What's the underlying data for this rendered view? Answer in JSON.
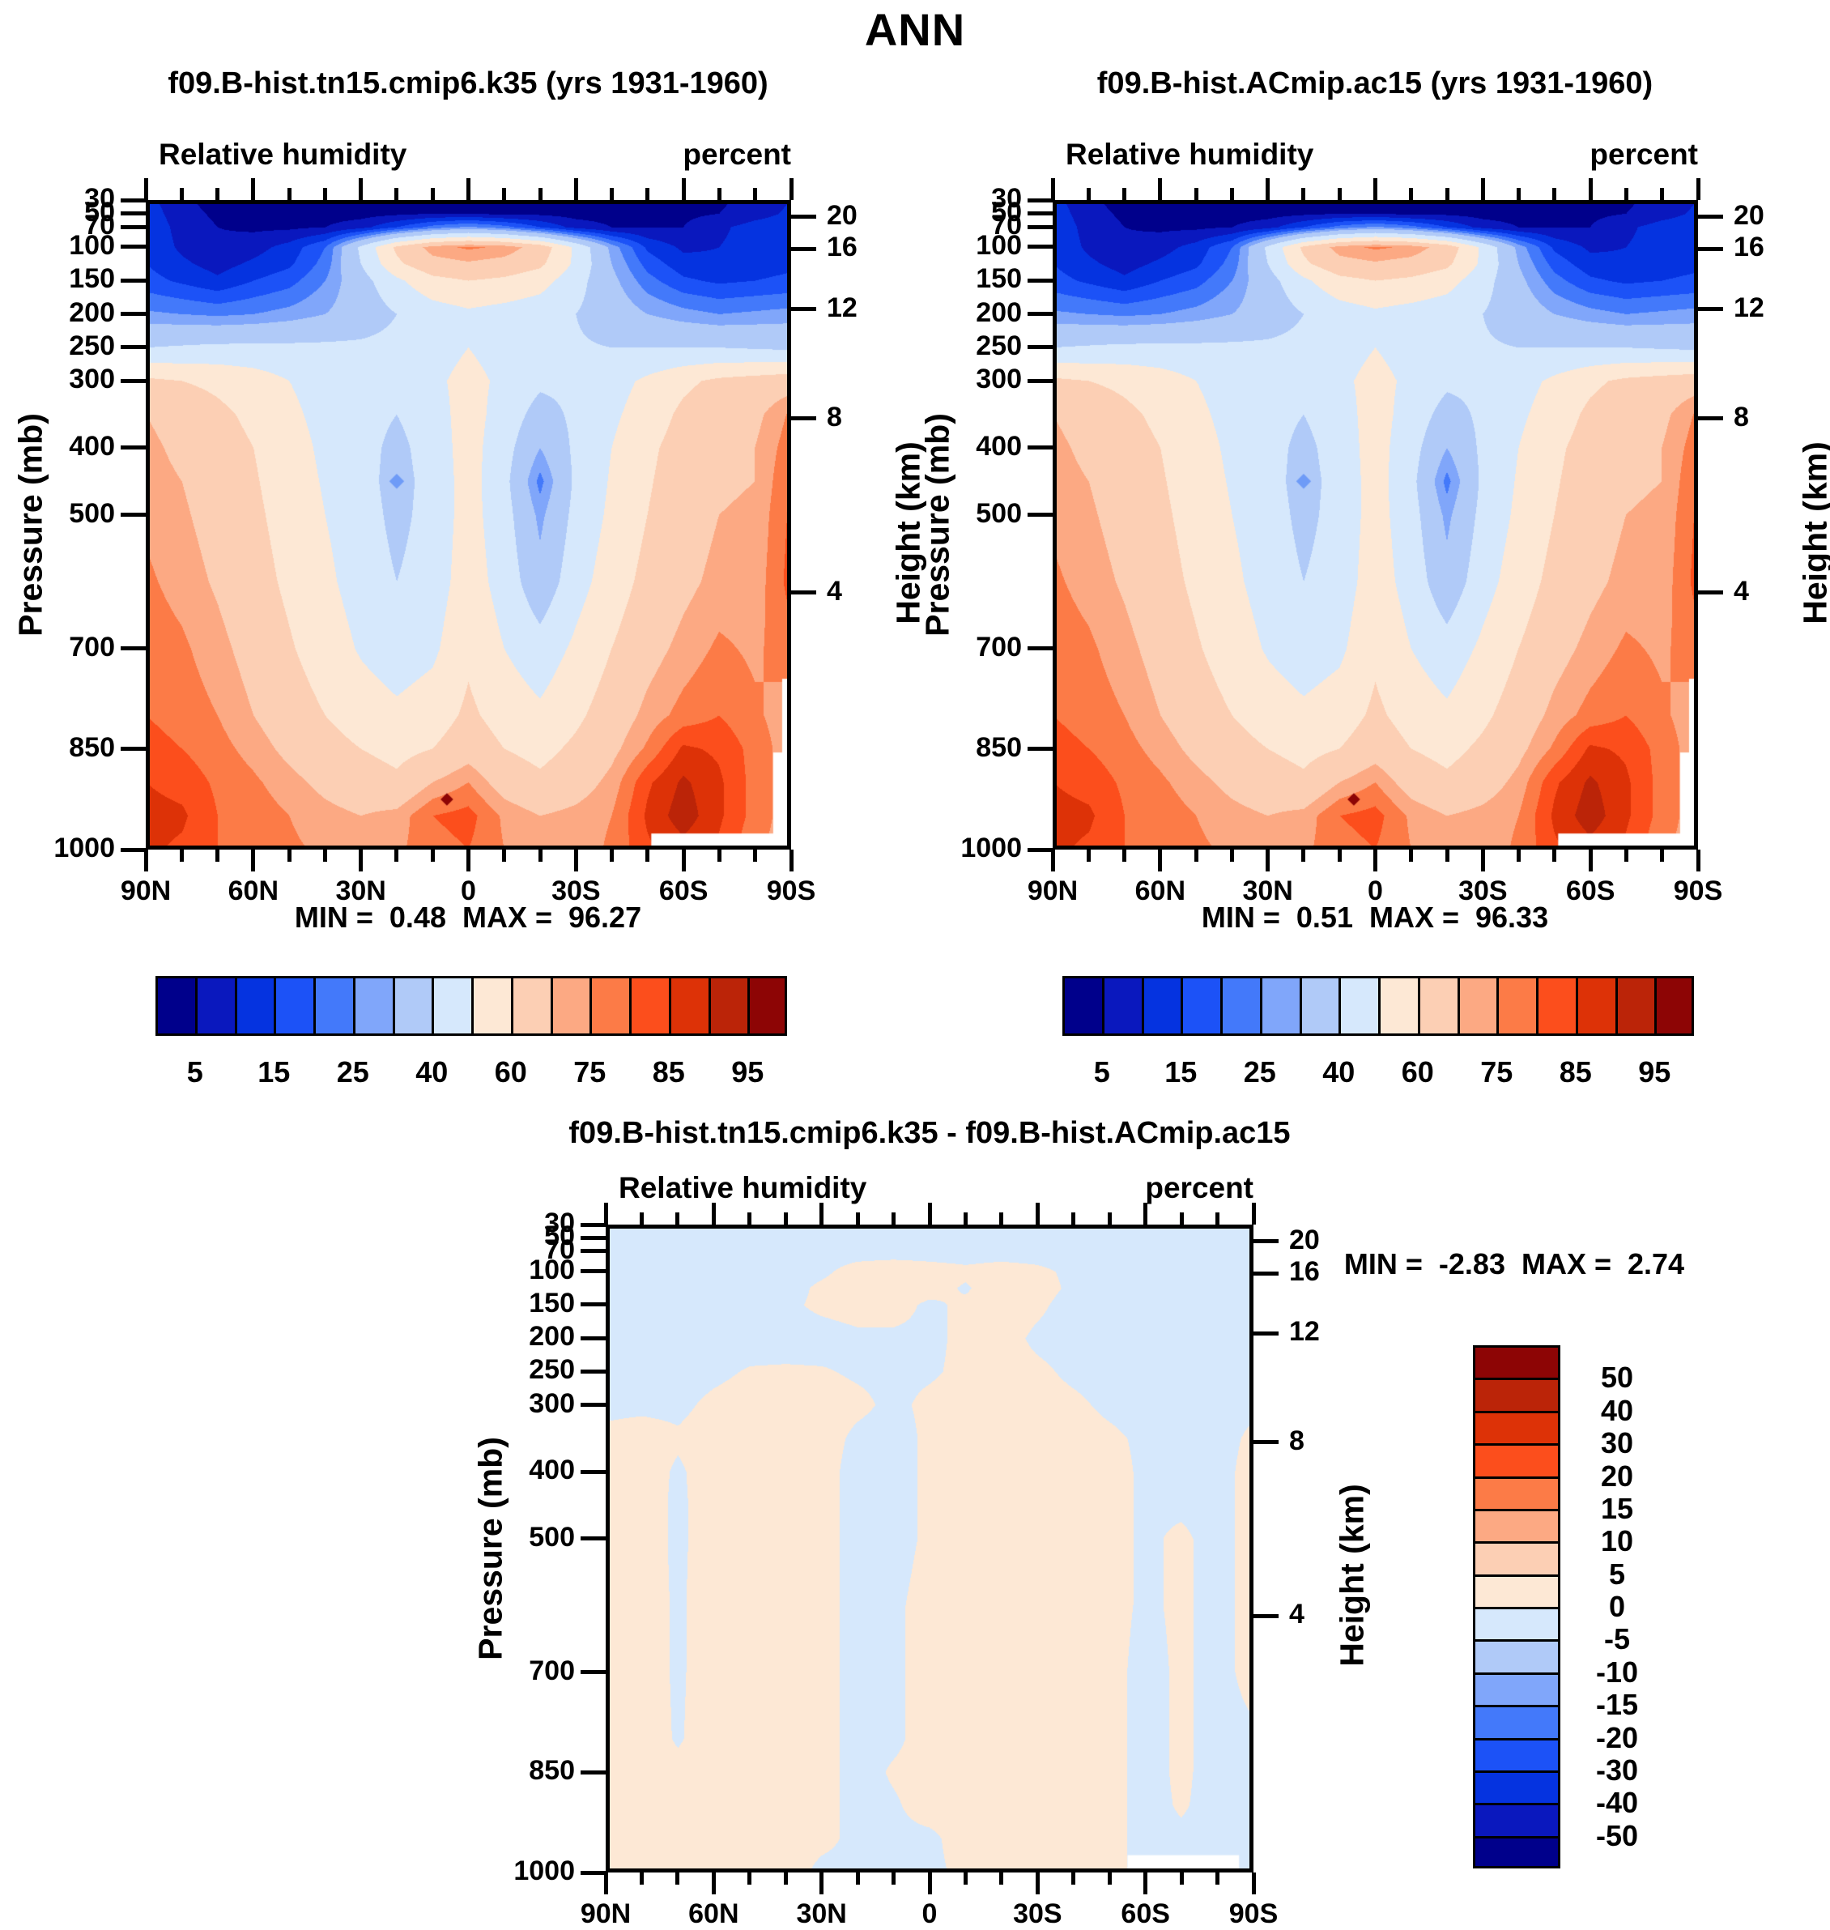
{
  "main_title": "ANN",
  "panels": [
    {
      "title": "f09.B-hist.tn15.cmip6.k35 (yrs 1931-1960)",
      "subtitle_left": "Relative humidity",
      "subtitle_right": "percent",
      "stats": {
        "min_label": "MIN =",
        "min": "0.48",
        "max_label": "MAX =",
        "max": "96.27"
      },
      "field": "rh"
    },
    {
      "title": "f09.B-hist.ACmip.ac15 (yrs 1931-1960)",
      "subtitle_left": "Relative humidity",
      "subtitle_right": "percent",
      "stats": {
        "min_label": "MIN =",
        "min": "0.51",
        "max_label": "MAX =",
        "max": "96.33"
      },
      "field": "rh"
    },
    {
      "title": "f09.B-hist.tn15.cmip6.k35 - f09.B-hist.ACmip.ac15",
      "subtitle_left": "Relative humidity",
      "subtitle_right": "percent",
      "stats": {
        "min_label": "MIN =",
        "min": "-2.83",
        "max_label": "MAX =",
        "max": "2.74"
      },
      "field": "rh_diff"
    }
  ],
  "axes": {
    "pressure_label": "Pressure (mb)",
    "height_label": "Height (km)",
    "pressure_ticks": [
      30,
      50,
      70,
      100,
      150,
      200,
      250,
      300,
      400,
      500,
      700,
      850,
      1000
    ],
    "pressure_range": [
      30,
      1000
    ],
    "height_ticks": [
      {
        "km": "20",
        "p": 55
      },
      {
        "km": "16",
        "p": 103
      },
      {
        "km": "12",
        "p": 193
      },
      {
        "km": "8",
        "p": 356
      },
      {
        "km": "4",
        "p": 616
      }
    ],
    "lat_major": [
      {
        "lat": 90,
        "label": "90N"
      },
      {
        "lat": 60,
        "label": "60N"
      },
      {
        "lat": 30,
        "label": "30N"
      },
      {
        "lat": 0,
        "label": "0"
      },
      {
        "lat": -30,
        "label": "30S"
      },
      {
        "lat": -60,
        "label": "60S"
      },
      {
        "lat": -90,
        "label": "90S"
      }
    ],
    "lat_minor_step": 10
  },
  "colorbars": {
    "rh_labels": [
      "5",
      "15",
      "25",
      "40",
      "60",
      "75",
      "85",
      "95"
    ],
    "rh_label_boundaries": [
      1,
      3,
      5,
      7,
      9,
      11,
      13,
      15
    ],
    "diff_labels": [
      "50",
      "40",
      "30",
      "20",
      "15",
      "10",
      "5",
      "0",
      "-5",
      "-10",
      "-15",
      "-20",
      "-30",
      "-40",
      "-50"
    ]
  },
  "chart_data": {
    "type": "filled_contour_latitude_pressure",
    "variable": "Relative humidity",
    "units": "percent",
    "season": "ANN",
    "palette": [
      "#00008B",
      "#0A18BE",
      "#0533E0",
      "#1C52F7",
      "#4379FA",
      "#80A6FA",
      "#B0CAF8",
      "#D6E8FC",
      "#FDE8D5",
      "#FCCFB4",
      "#FCA983",
      "#FC7B47",
      "#FC4E1C",
      "#DD3207",
      "#BB2408",
      "#8D0505"
    ],
    "rh_levels": [
      5,
      10,
      15,
      20,
      25,
      30,
      40,
      50,
      60,
      70,
      75,
      80,
      85,
      90,
      95
    ],
    "diff_levels": [
      -50,
      -40,
      -30,
      -20,
      -15,
      -10,
      -5,
      0,
      5,
      10,
      15,
      20,
      30,
      40,
      50
    ],
    "lats": [
      90,
      80,
      70,
      60,
      50,
      40,
      30,
      20,
      10,
      0,
      -10,
      -20,
      -30,
      -40,
      -50,
      -60,
      -70,
      -80,
      -90
    ],
    "pressures": [
      30,
      50,
      70,
      100,
      125,
      150,
      200,
      250,
      300,
      350,
      400,
      450,
      500,
      600,
      700,
      800,
      850,
      900,
      950,
      1000
    ],
    "fields": {
      "rh": [
        [
          12,
          6,
          3,
          2,
          2,
          2,
          2,
          2,
          3,
          3,
          3,
          2,
          2,
          2,
          2,
          3,
          4,
          7,
          10
        ],
        [
          13,
          7,
          4,
          3,
          3,
          3,
          3,
          4,
          5,
          5,
          4,
          4,
          3,
          3,
          3,
          4,
          5,
          8,
          11
        ],
        [
          14,
          8,
          5,
          4,
          4,
          5,
          8,
          15,
          22,
          26,
          22,
          15,
          8,
          5,
          5,
          5,
          9,
          12,
          13
        ],
        [
          14,
          9,
          6,
          8,
          12,
          20,
          42,
          62,
          73,
          76,
          74,
          66,
          48,
          28,
          14,
          9,
          10,
          12,
          13
        ],
        [
          15,
          11,
          8,
          11,
          14,
          22,
          40,
          58,
          67,
          69,
          67,
          62,
          48,
          30,
          18,
          12,
          11,
          13,
          14
        ],
        [
          17,
          14,
          11,
          15,
          18,
          25,
          36,
          48,
          57,
          60,
          58,
          54,
          44,
          32,
          22,
          16,
          14,
          15,
          16
        ],
        [
          26,
          25,
          24,
          25,
          27,
          30,
          34,
          40,
          45,
          48,
          46,
          44,
          40,
          35,
          30,
          27,
          25,
          26,
          27
        ],
        [
          40,
          41,
          42,
          42,
          42,
          42,
          42,
          43,
          46,
          50,
          46,
          43,
          41,
          40,
          40,
          40,
          40,
          39,
          38
        ],
        [
          62,
          60,
          58,
          55,
          50,
          46,
          44,
          44,
          48,
          53,
          48,
          42,
          42,
          46,
          52,
          58,
          62,
          64,
          66
        ],
        [
          70,
          66,
          62,
          58,
          52,
          47,
          44,
          40,
          46,
          54,
          46,
          36,
          42,
          48,
          55,
          62,
          66,
          68,
          76
        ],
        [
          72,
          68,
          64,
          60,
          54,
          48,
          44,
          37,
          45,
          54,
          44,
          30,
          42,
          50,
          58,
          64,
          68,
          70,
          78
        ],
        [
          73,
          70,
          66,
          61,
          55,
          49,
          44,
          36,
          44,
          54,
          43,
          23,
          42,
          51,
          59,
          65,
          69,
          70,
          80
        ],
        [
          74,
          71,
          67,
          62,
          56,
          50,
          45,
          37,
          44,
          54,
          44,
          28,
          43,
          52,
          60,
          66,
          70,
          71,
          81
        ],
        [
          76,
          73,
          69,
          64,
          58,
          52,
          46,
          40,
          45,
          55,
          46,
          33,
          46,
          55,
          63,
          68,
          72,
          72,
          82
        ],
        [
          78,
          76,
          72,
          67,
          61,
          55,
          49,
          45,
          48,
          58,
          50,
          44,
          52,
          60,
          67,
          72,
          76,
          74,
          78
        ],
        [
          80,
          78,
          75,
          70,
          65,
          60,
          55,
          52,
          55,
          62,
          56,
          52,
          58,
          65,
          72,
          77,
          80,
          76,
          72
        ],
        [
          82,
          80,
          77,
          73,
          68,
          64,
          60,
          57,
          60,
          66,
          60,
          57,
          62,
          68,
          76,
          86,
          84,
          78,
          72
        ],
        [
          85,
          83,
          79,
          76,
          72,
          68,
          65,
          62,
          70,
          75,
          66,
          62,
          66,
          72,
          84,
          91,
          86,
          78,
          72
        ],
        [
          87,
          86,
          80,
          78,
          75,
          72,
          70,
          72,
          80,
          82,
          74,
          70,
          72,
          75,
          86,
          93,
          86,
          78,
          72
        ],
        [
          86,
          84,
          80,
          78,
          76,
          74,
          72,
          74,
          78,
          80,
          75,
          72,
          72,
          76,
          84,
          88,
          84,
          76,
          72
        ]
      ],
      "rh_diff": [
        [
          -1,
          -1,
          -1,
          -1,
          -1,
          -1,
          -1,
          -1,
          -1,
          -1,
          -1,
          -1,
          -1,
          -1,
          -1,
          -1,
          -1,
          -1,
          -1
        ],
        [
          -1,
          -1,
          -1,
          -1,
          -1,
          -1,
          -1,
          -1,
          -1,
          -1,
          -1,
          -1,
          -1,
          -1,
          -1,
          -1,
          -1,
          -1,
          -1
        ],
        [
          -1,
          -1,
          -1,
          -1,
          -1,
          -1,
          -1,
          -1,
          -1,
          -1,
          -1,
          -1,
          -1,
          -1,
          -1,
          -1,
          -1,
          -1,
          -1
        ],
        [
          -1,
          -1,
          -1,
          -1,
          -1,
          -1,
          -0.5,
          1,
          1.5,
          1,
          0.5,
          1,
          0.5,
          -0.5,
          -1,
          -1,
          -1,
          -1,
          -1
        ],
        [
          -1,
          -1,
          -1,
          -1,
          -1,
          -1,
          0.5,
          1.5,
          1.5,
          1,
          -0.3,
          1.5,
          1,
          -0.5,
          -1,
          -1,
          -1,
          -1,
          -1
        ],
        [
          -1,
          -1,
          -1,
          -1,
          -1,
          -0.5,
          0.5,
          1,
          1,
          -0.5,
          0.5,
          1.5,
          0.5,
          -1,
          -1,
          -1,
          -1,
          -1,
          -1
        ],
        [
          -1,
          -1,
          -1,
          -1,
          -1,
          -1,
          -1,
          -0.5,
          -0.5,
          -0.5,
          0.5,
          1,
          -0.5,
          -1,
          -1,
          -1,
          -1,
          -1,
          -1
        ],
        [
          -1,
          -1,
          -1,
          -0.5,
          0.2,
          0.3,
          0.2,
          -0.3,
          -0.5,
          -0.3,
          0.5,
          1,
          0.5,
          -0.5,
          -1,
          -1,
          -1,
          -1,
          -1
        ],
        [
          -0.5,
          -0.5,
          -0.5,
          0.5,
          1,
          1,
          1,
          0.5,
          -0.5,
          0.5,
          1,
          1,
          1,
          0.5,
          -0.5,
          -1,
          -1,
          -1,
          -0.5
        ],
        [
          0.5,
          1,
          0.3,
          1,
          1,
          1,
          1,
          -0.5,
          -1,
          0.5,
          1,
          1,
          1,
          1,
          0.5,
          -0.5,
          -1,
          -1,
          0.5
        ],
        [
          1,
          1,
          -0.3,
          1,
          1,
          1,
          1,
          -1,
          -1,
          0.5,
          1,
          1,
          1,
          1,
          1,
          -0.5,
          -1,
          -1,
          1
        ],
        [
          1,
          1,
          -0.4,
          1,
          1,
          1,
          1,
          -1,
          -1,
          0.5,
          1,
          1,
          1,
          1,
          1,
          -0.5,
          -0.5,
          -1,
          1
        ],
        [
          1,
          1,
          -0.4,
          1,
          1,
          1,
          1,
          -1,
          -1,
          0.5,
          1,
          1,
          1,
          1,
          1,
          -0.5,
          0.5,
          -1,
          1
        ],
        [
          1,
          1,
          -0.3,
          1,
          1,
          1,
          1,
          -1,
          -0.5,
          1,
          1,
          1,
          1,
          1,
          1,
          -0.5,
          0.5,
          -1,
          1
        ],
        [
          1,
          1,
          -0.3,
          1,
          1,
          1,
          1,
          -1,
          -0.5,
          1,
          1,
          1,
          1,
          1,
          1,
          -1,
          0.5,
          -1,
          1
        ],
        [
          1,
          1,
          -0.2,
          1,
          1,
          1,
          1,
          -1,
          -0.5,
          1,
          1,
          1,
          1,
          1,
          1,
          -1,
          0.5,
          -1,
          -0.5
        ],
        [
          1,
          1,
          0.5,
          1,
          1,
          1,
          1,
          -1,
          0.3,
          1,
          1,
          1,
          1,
          1,
          1,
          -1,
          0.5,
          -1,
          -0.5
        ],
        [
          1,
          1,
          1,
          1,
          1,
          1,
          1,
          -1,
          -0.3,
          1,
          1,
          1,
          1,
          1,
          1,
          -1,
          0.3,
          -1,
          -1
        ],
        [
          1,
          1,
          1,
          1,
          1,
          1,
          0.5,
          -0.5,
          -0.5,
          -0.5,
          1,
          1,
          1,
          1,
          1,
          -1,
          -0.5,
          -1,
          -1
        ],
        [
          1,
          1,
          1,
          1,
          1,
          1,
          -0.5,
          -0.5,
          -0.5,
          -0.5,
          0.5,
          1,
          1,
          1,
          1,
          -1,
          -1,
          -1,
          -1
        ]
      ]
    },
    "masks_top": [
      {
        "lat0": -51,
        "lat1": -90,
        "p0": 976,
        "p1": 1000
      },
      {
        "lat0": -85,
        "lat1": -90,
        "p0": 855,
        "p1": 1000
      },
      {
        "lat0": -87.5,
        "lat1": -90,
        "p0": 745,
        "p1": 1000
      }
    ],
    "masks_diff": [
      {
        "lat0": -55,
        "lat1": -86,
        "p0": 974,
        "p1": 1000
      }
    ],
    "markers": [
      {
        "lat": 20,
        "p": 450,
        "color": "#6E9BF7",
        "size": 13
      },
      {
        "lat": 6,
        "p": 925,
        "color": "#8D0505",
        "size": 11
      }
    ]
  }
}
